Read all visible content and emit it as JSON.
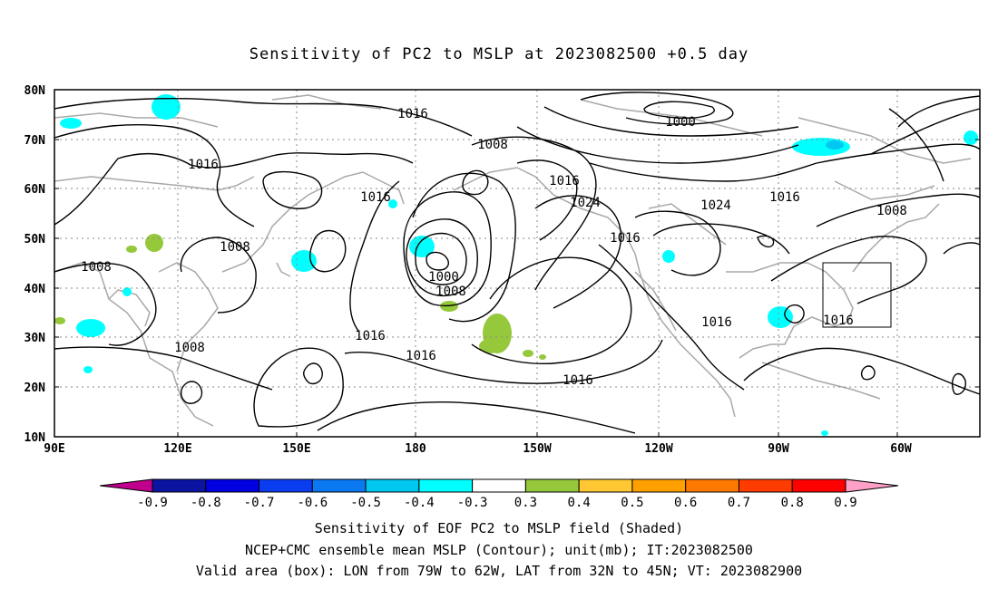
{
  "title": "Sensitivity of PC2 to MSLP at 2023082500 +0.5 day",
  "axes": {
    "lat_labels": [
      "80N",
      "70N",
      "60N",
      "50N",
      "40N",
      "30N",
      "20N",
      "10N"
    ],
    "lon_labels": [
      "90E",
      "120E",
      "150E",
      "180",
      "150W",
      "120W",
      "90W",
      "60W"
    ]
  },
  "contour_labels": [
    "1016",
    "1000",
    "1008",
    "1016",
    "1016",
    "1024",
    "1024",
    "1016",
    "1016",
    "1008",
    "1016",
    "1008",
    "1008",
    "1016",
    "1000",
    "1008",
    "1016",
    "1016",
    "1008",
    "1016",
    "1016"
  ],
  "colorbar": {
    "labels": [
      "-0.9",
      "-0.8",
      "-0.7",
      "-0.6",
      "-0.5",
      "-0.4",
      "-0.3",
      "0.3",
      "0.4",
      "0.5",
      "0.6",
      "0.7",
      "0.8",
      "0.9"
    ],
    "colors": [
      "#c0008c",
      "#0a14a0",
      "#0000e0",
      "#0a3cf0",
      "#0a78f0",
      "#00c8f0",
      "#00ffff",
      "#ffffff",
      "#96c83c",
      "#ffc832",
      "#ffa000",
      "#ff7800",
      "#ff3c00",
      "#ff0000",
      "#ffa0c8"
    ]
  },
  "footer": {
    "line1": "Sensitivity of EOF PC2 to MSLP field (Shaded)",
    "line2": "NCEP+CMC ensemble mean MSLP (Contour); unit(mb); IT:2023082500",
    "line3": "Valid area (box): LON from 79W to 62W, LAT from 32N to 45N; VT: 2023082900"
  }
}
